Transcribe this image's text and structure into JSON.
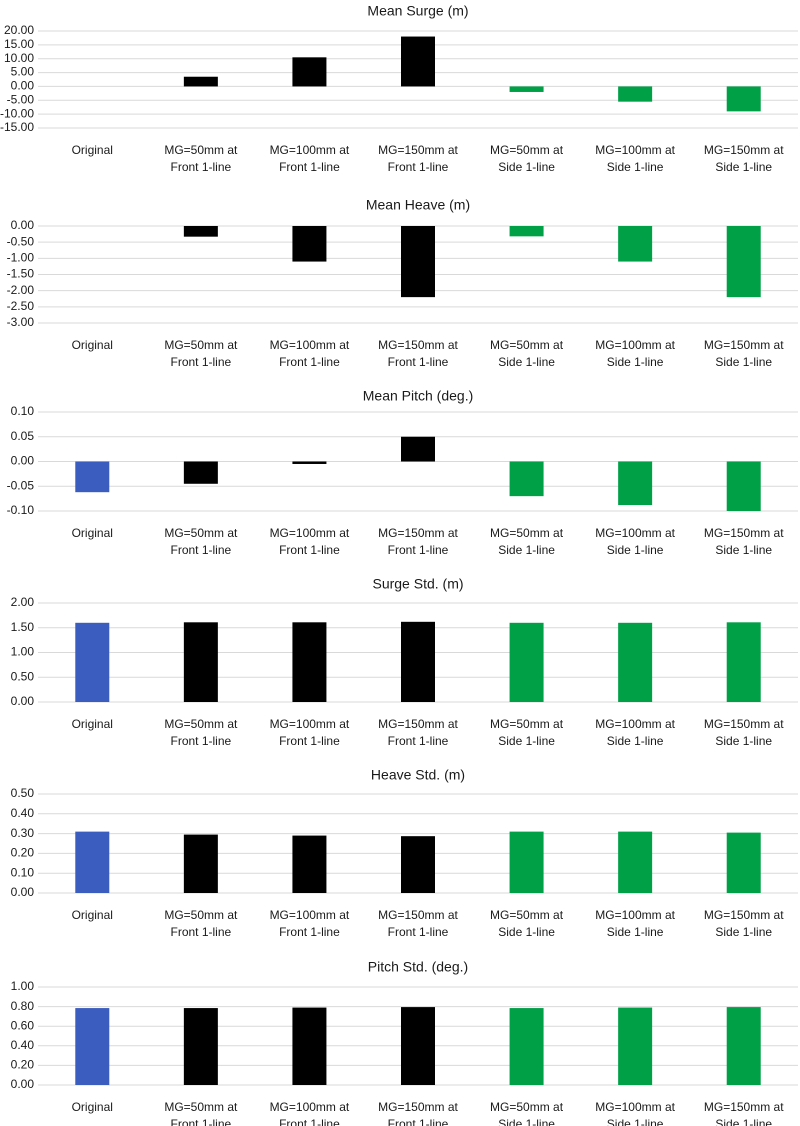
{
  "colors": {
    "original": "#3a5dbf",
    "front": "#000000",
    "side": "#00a047"
  },
  "categories": [
    [
      "Original"
    ],
    [
      "MG=50mm at",
      "Front 1-line"
    ],
    [
      "MG=100mm at",
      "Front 1-line"
    ],
    [
      "MG=150mm at",
      "Front 1-line"
    ],
    [
      "MG=50mm at",
      "Side 1-line"
    ],
    [
      "MG=100mm at",
      "Side 1-line"
    ],
    [
      "MG=150mm at",
      "Side 1-line"
    ]
  ],
  "chart_data": [
    {
      "type": "bar",
      "title": "Mean Surge (m)",
      "ylim": [
        -15,
        20
      ],
      "yticks": [
        20,
        15,
        10,
        5,
        0,
        -5,
        -10,
        -15
      ],
      "ytick_labels": [
        "20.00",
        "15.00",
        "10.00",
        "5.00",
        "0.00",
        "-5.00",
        "-10.00",
        "-15.00"
      ],
      "values": [
        0,
        3.5,
        10.5,
        18.0,
        -2.0,
        -5.5,
        -9.0
      ]
    },
    {
      "type": "bar",
      "title": "Mean Heave (m)",
      "ylim": [
        -3,
        0
      ],
      "yticks": [
        0,
        -0.5,
        -1,
        -1.5,
        -2,
        -2.5,
        -3
      ],
      "ytick_labels": [
        "0.00",
        "-0.50",
        "-1.00",
        "-1.50",
        "-2.00",
        "-2.50",
        "-3.00"
      ],
      "values": [
        0,
        -0.33,
        -1.1,
        -2.2,
        -0.32,
        -1.1,
        -2.2
      ]
    },
    {
      "type": "bar",
      "title": "Mean Pitch (deg.)",
      "ylim": [
        -0.1,
        0.1
      ],
      "yticks": [
        0.1,
        0.05,
        0,
        -0.05,
        -0.1
      ],
      "ytick_labels": [
        "0.10",
        "0.05",
        "0.00",
        "-0.05",
        "-0.10"
      ],
      "values": [
        -0.062,
        -0.045,
        -0.005,
        0.05,
        -0.07,
        -0.088,
        -0.1
      ]
    },
    {
      "type": "bar",
      "title": "Surge Std. (m)",
      "ylim": [
        0,
        2
      ],
      "yticks": [
        2,
        1.5,
        1,
        0.5,
        0
      ],
      "ytick_labels": [
        "2.00",
        "1.50",
        "1.00",
        "0.50",
        "0.00"
      ],
      "values": [
        1.6,
        1.61,
        1.61,
        1.62,
        1.6,
        1.6,
        1.61
      ]
    },
    {
      "type": "bar",
      "title": "Heave Std. (m)",
      "ylim": [
        0,
        0.5
      ],
      "yticks": [
        0.5,
        0.4,
        0.3,
        0.2,
        0.1,
        0
      ],
      "ytick_labels": [
        "0.50",
        "0.40",
        "0.30",
        "0.20",
        "0.10",
        "0.00"
      ],
      "values": [
        0.31,
        0.295,
        0.29,
        0.287,
        0.31,
        0.31,
        0.305
      ]
    },
    {
      "type": "bar",
      "title": "Pitch Std. (deg.)",
      "ylim": [
        0,
        1
      ],
      "yticks": [
        1,
        0.8,
        0.6,
        0.4,
        0.2,
        0
      ],
      "ytick_labels": [
        "1.00",
        "0.80",
        "0.60",
        "0.40",
        "0.20",
        "0.00"
      ],
      "values": [
        0.785,
        0.785,
        0.79,
        0.795,
        0.785,
        0.79,
        0.795
      ]
    }
  ]
}
